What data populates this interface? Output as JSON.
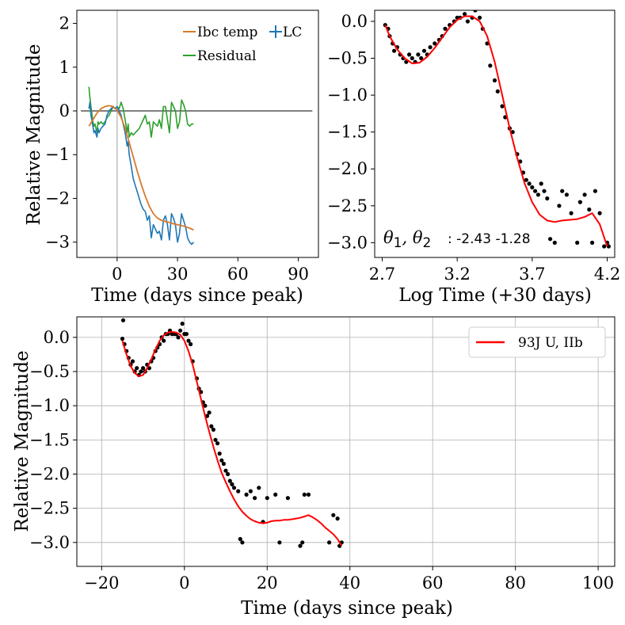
{
  "chart_data": [
    {
      "type": "line",
      "panel": "top-left",
      "xlabel": "Time (days since peak)",
      "ylabel": "Relative Magnitude",
      "xlim": [
        -20,
        100
      ],
      "ylim": [
        -3.35,
        2.3
      ],
      "xticks": [
        0,
        30,
        60,
        90
      ],
      "yticks": [
        2,
        1,
        0,
        -1,
        -2,
        -3
      ],
      "legend": {
        "placement": "top-right",
        "entries": [
          "Ibc temp",
          "LC",
          "Residual"
        ]
      },
      "hline_y": 0,
      "vline_x": 0,
      "colors": {
        "Ibc temp": "#d9792b",
        "LC": "#1f77b4",
        "Residual": "#2ca02c",
        "ref": "#808080",
        "vline": "#c0c0c0"
      },
      "series": [
        {
          "name": "Ibc temp",
          "x": [
            -14,
            -12,
            -10,
            -8,
            -6,
            -4,
            -2,
            0,
            2,
            4,
            6,
            8,
            10,
            12,
            14,
            16,
            18,
            20,
            22,
            24,
            26,
            28,
            30,
            32,
            34,
            36,
            38
          ],
          "y": [
            -0.35,
            -0.2,
            -0.05,
            0.05,
            0.1,
            0.12,
            0.1,
            0.02,
            -0.15,
            -0.4,
            -0.72,
            -1.05,
            -1.38,
            -1.68,
            -1.95,
            -2.18,
            -2.35,
            -2.45,
            -2.5,
            -2.53,
            -2.55,
            -2.58,
            -2.6,
            -2.62,
            -2.65,
            -2.68,
            -2.72
          ]
        },
        {
          "name": "LC",
          "x": [
            -14,
            -13.5,
            -13,
            -12,
            -11.5,
            -11,
            -10,
            -9.5,
            -9,
            -8,
            -7,
            -6,
            -5,
            -4,
            -3,
            -2,
            -1,
            0,
            1,
            2,
            3,
            4,
            5,
            5.5,
            6,
            7,
            8,
            9,
            10,
            11,
            12,
            13,
            14,
            15,
            16,
            17,
            18,
            19,
            20,
            21,
            22,
            23,
            24,
            25,
            26,
            27,
            28,
            29,
            30,
            31,
            32,
            33,
            34,
            35,
            36,
            37,
            38
          ],
          "y": [
            0.05,
            0.2,
            -0.1,
            -0.35,
            -0.5,
            -0.45,
            -0.6,
            -0.4,
            -0.5,
            -0.4,
            -0.35,
            -0.3,
            -0.1,
            0.0,
            0.05,
            0.1,
            0.05,
            0.1,
            0.0,
            -0.1,
            -0.3,
            -0.5,
            -0.8,
            -0.7,
            -1.0,
            -1.25,
            -1.55,
            -1.7,
            -1.85,
            -2.0,
            -2.15,
            -2.25,
            -2.3,
            -2.5,
            -2.4,
            -2.9,
            -2.6,
            -2.7,
            -2.8,
            -2.75,
            -2.95,
            -2.5,
            -2.4,
            -2.6,
            -2.95,
            -2.35,
            -2.45,
            -2.6,
            -3.0,
            -2.8,
            -2.35,
            -2.5,
            -2.65,
            -2.9,
            -3.0,
            -3.05,
            -3.0
          ]
        },
        {
          "name": "Residual",
          "x": [
            -14,
            -13.5,
            -13,
            -12,
            -11.5,
            -11,
            -10,
            -9.5,
            -9,
            -8,
            -7,
            -6,
            -5,
            -4,
            -3,
            -2,
            -1,
            0,
            1,
            2,
            3,
            4,
            5,
            5.5,
            6,
            7,
            8,
            9,
            10,
            11,
            12,
            13,
            14,
            15,
            16,
            17,
            18,
            19,
            20,
            21,
            22,
            23,
            24,
            25,
            26,
            27,
            28,
            29,
            30,
            31,
            32,
            33,
            34,
            35,
            36,
            37,
            38
          ],
          "y": [
            0.55,
            0.3,
            0.1,
            -0.25,
            -0.35,
            -0.3,
            -0.5,
            -0.25,
            -0.3,
            -0.25,
            -0.3,
            -0.25,
            -0.15,
            -0.1,
            0.0,
            0.1,
            0.05,
            0.1,
            0.05,
            0.2,
            0.05,
            -0.2,
            -0.5,
            -0.3,
            -0.6,
            -0.5,
            -0.55,
            -0.5,
            -0.45,
            -0.4,
            -0.3,
            -0.2,
            -0.1,
            -0.3,
            -0.25,
            -0.6,
            -0.25,
            -0.3,
            -0.35,
            -0.2,
            -0.4,
            0.1,
            0.1,
            -0.2,
            -0.5,
            0.2,
            0.1,
            0.0,
            -0.4,
            -0.25,
            0.25,
            0.15,
            0.0,
            -0.3,
            -0.35,
            -0.3,
            -0.3
          ]
        }
      ]
    },
    {
      "type": "scatter",
      "panel": "top-right",
      "xlabel": "Log Time (+30 days)",
      "xlim": [
        2.65,
        4.25
      ],
      "ylim": [
        -3.2,
        0.15
      ],
      "xticks": [
        2.7,
        3.2,
        3.7,
        4.2
      ],
      "yticks": [
        0.0,
        -0.5,
        -1.0,
        -1.5,
        -2.0,
        -2.5,
        -3.0
      ],
      "annotation": {
        "symbol": "θ1, θ2",
        "text": ": -2.43 -1.28"
      },
      "colors": {
        "fit": "#ff0000",
        "points": "#000000"
      },
      "fit_line": {
        "x": [
          2.72,
          2.75,
          2.8,
          2.85,
          2.9,
          2.95,
          3.0,
          3.05,
          3.1,
          3.15,
          3.2,
          3.25,
          3.3,
          3.35,
          3.4,
          3.45,
          3.5,
          3.55,
          3.6,
          3.65,
          3.7,
          3.75,
          3.8,
          3.85,
          3.9,
          3.95,
          4.0,
          4.05,
          4.1,
          4.15,
          4.2
        ],
        "y": [
          -0.05,
          -0.2,
          -0.38,
          -0.5,
          -0.57,
          -0.56,
          -0.48,
          -0.36,
          -0.22,
          -0.08,
          0.02,
          0.07,
          0.07,
          0.0,
          -0.2,
          -0.55,
          -1.0,
          -1.45,
          -1.85,
          -2.2,
          -2.45,
          -2.62,
          -2.7,
          -2.72,
          -2.7,
          -2.69,
          -2.68,
          -2.65,
          -2.6,
          -2.75,
          -3.05
        ]
      },
      "points": {
        "x": [
          2.72,
          2.73,
          2.74,
          2.75,
          2.77,
          2.78,
          2.8,
          2.82,
          2.84,
          2.86,
          2.88,
          2.9,
          2.92,
          2.94,
          2.96,
          2.98,
          3.0,
          3.02,
          3.05,
          3.08,
          3.1,
          3.12,
          3.15,
          3.18,
          3.2,
          3.22,
          3.25,
          3.27,
          3.3,
          3.32,
          3.35,
          3.37,
          3.4,
          3.42,
          3.45,
          3.47,
          3.5,
          3.52,
          3.55,
          3.57,
          3.6,
          3.62,
          3.64,
          3.66,
          3.68,
          3.7,
          3.72,
          3.74,
          3.76,
          3.78,
          3.8,
          3.82,
          3.85,
          3.88,
          3.9,
          3.93,
          3.96,
          4.0,
          4.02,
          4.05,
          4.08,
          4.1,
          4.12,
          4.15,
          4.18,
          4.2,
          4.21
        ],
        "y": [
          -0.05,
          0.2,
          -0.1,
          -0.2,
          -0.3,
          -0.4,
          -0.35,
          -0.45,
          -0.5,
          -0.55,
          -0.45,
          -0.5,
          -0.55,
          -0.45,
          -0.5,
          -0.4,
          -0.45,
          -0.35,
          -0.3,
          -0.25,
          -0.2,
          -0.1,
          -0.05,
          0.0,
          0.05,
          0.05,
          0.1,
          0.0,
          0.05,
          0.15,
          0.05,
          -0.1,
          -0.3,
          -0.6,
          -0.8,
          -0.95,
          -1.15,
          -1.3,
          -1.45,
          -1.5,
          -1.8,
          -1.9,
          -2.05,
          -2.15,
          -2.2,
          -2.25,
          -2.3,
          -2.35,
          -2.2,
          -2.3,
          -2.4,
          -2.95,
          -3.0,
          -2.5,
          -2.3,
          -2.35,
          -2.6,
          -3.0,
          -2.45,
          -2.35,
          -2.55,
          -3.0,
          -2.3,
          -2.6,
          -3.05,
          -3.0,
          -3.05
        ]
      }
    },
    {
      "type": "scatter",
      "panel": "bottom",
      "xlabel": "Time (days since peak)",
      "ylabel": "Relative Magnitude",
      "xlim": [
        -26,
        104
      ],
      "ylim": [
        -3.35,
        0.3
      ],
      "xticks": [
        -20,
        0,
        20,
        40,
        60,
        80,
        100
      ],
      "yticks": [
        0.0,
        -0.5,
        -1.0,
        -1.5,
        -2.0,
        -2.5,
        -3.0
      ],
      "grid": true,
      "legend": {
        "placement": "top-right",
        "entries": [
          "93J U, IIb"
        ]
      },
      "colors": {
        "fit": "#ff0000",
        "points": "#000000"
      },
      "fit_line": {
        "x": [
          -15,
          -14,
          -13,
          -12,
          -11,
          -10,
          -9,
          -8,
          -7,
          -6,
          -5,
          -4,
          -3,
          -2,
          -1,
          0,
          1,
          2,
          3,
          4,
          5,
          6,
          7,
          8,
          9,
          10,
          11,
          12,
          13,
          14,
          15,
          16,
          17,
          18,
          19,
          20,
          21,
          22,
          23,
          24,
          25,
          26,
          27,
          28,
          29,
          30,
          31,
          32,
          33,
          34,
          35,
          36,
          37,
          38
        ],
        "y": [
          -0.05,
          -0.25,
          -0.42,
          -0.52,
          -0.57,
          -0.55,
          -0.45,
          -0.32,
          -0.18,
          -0.05,
          0.03,
          0.07,
          0.08,
          0.07,
          0.04,
          -0.05,
          -0.2,
          -0.4,
          -0.65,
          -0.9,
          -1.15,
          -1.38,
          -1.6,
          -1.8,
          -1.98,
          -2.12,
          -2.25,
          -2.37,
          -2.47,
          -2.55,
          -2.61,
          -2.66,
          -2.69,
          -2.71,
          -2.72,
          -2.71,
          -2.69,
          -2.68,
          -2.68,
          -2.67,
          -2.67,
          -2.66,
          -2.65,
          -2.64,
          -2.62,
          -2.6,
          -2.63,
          -2.67,
          -2.72,
          -2.78,
          -2.83,
          -2.88,
          -2.95,
          -3.05
        ]
      },
      "points": {
        "x": [
          -15,
          -14.8,
          -14.5,
          -14,
          -13.5,
          -13,
          -12.5,
          -12,
          -11.5,
          -11,
          -10.5,
          -10,
          -9.5,
          -9,
          -8.5,
          -8,
          -7.5,
          -7,
          -6.5,
          -6,
          -5.5,
          -5,
          -4.5,
          -4,
          -3.5,
          -3,
          -2.5,
          -2,
          -1.5,
          -1,
          -0.5,
          0,
          0.5,
          1,
          1.5,
          2,
          3,
          3.5,
          4,
          4.5,
          5,
          5.5,
          6,
          6.5,
          7,
          7.5,
          8,
          8.5,
          9,
          9.5,
          10,
          10.5,
          11,
          11.5,
          12,
          13,
          13.5,
          14,
          15,
          16,
          17,
          18,
          19,
          20,
          22,
          23,
          25,
          28,
          28.5,
          29,
          30,
          35,
          36,
          37,
          37.5,
          38
        ],
        "y": [
          -0.02,
          0.25,
          -0.1,
          -0.2,
          -0.3,
          -0.4,
          -0.35,
          -0.5,
          -0.45,
          -0.55,
          -0.5,
          -0.45,
          -0.5,
          -0.4,
          -0.45,
          -0.35,
          -0.3,
          -0.2,
          -0.15,
          -0.1,
          0.0,
          -0.05,
          0.05,
          0.05,
          0.1,
          0.05,
          0.05,
          0.05,
          0.0,
          0.1,
          0.2,
          0.05,
          0.05,
          -0.05,
          -0.1,
          -0.35,
          -0.6,
          -0.75,
          -0.8,
          -0.95,
          -1.0,
          -1.15,
          -1.1,
          -1.3,
          -1.35,
          -1.5,
          -1.55,
          -1.7,
          -1.8,
          -1.85,
          -1.95,
          -2.0,
          -2.1,
          -2.15,
          -2.2,
          -2.25,
          -2.95,
          -3.0,
          -2.3,
          -2.25,
          -2.35,
          -2.2,
          -2.7,
          -2.35,
          -2.3,
          -3.0,
          -2.35,
          -3.05,
          -3.0,
          -2.3,
          -2.3,
          -3.0,
          -2.6,
          -2.65,
          -3.05,
          -3.0
        ]
      }
    }
  ]
}
